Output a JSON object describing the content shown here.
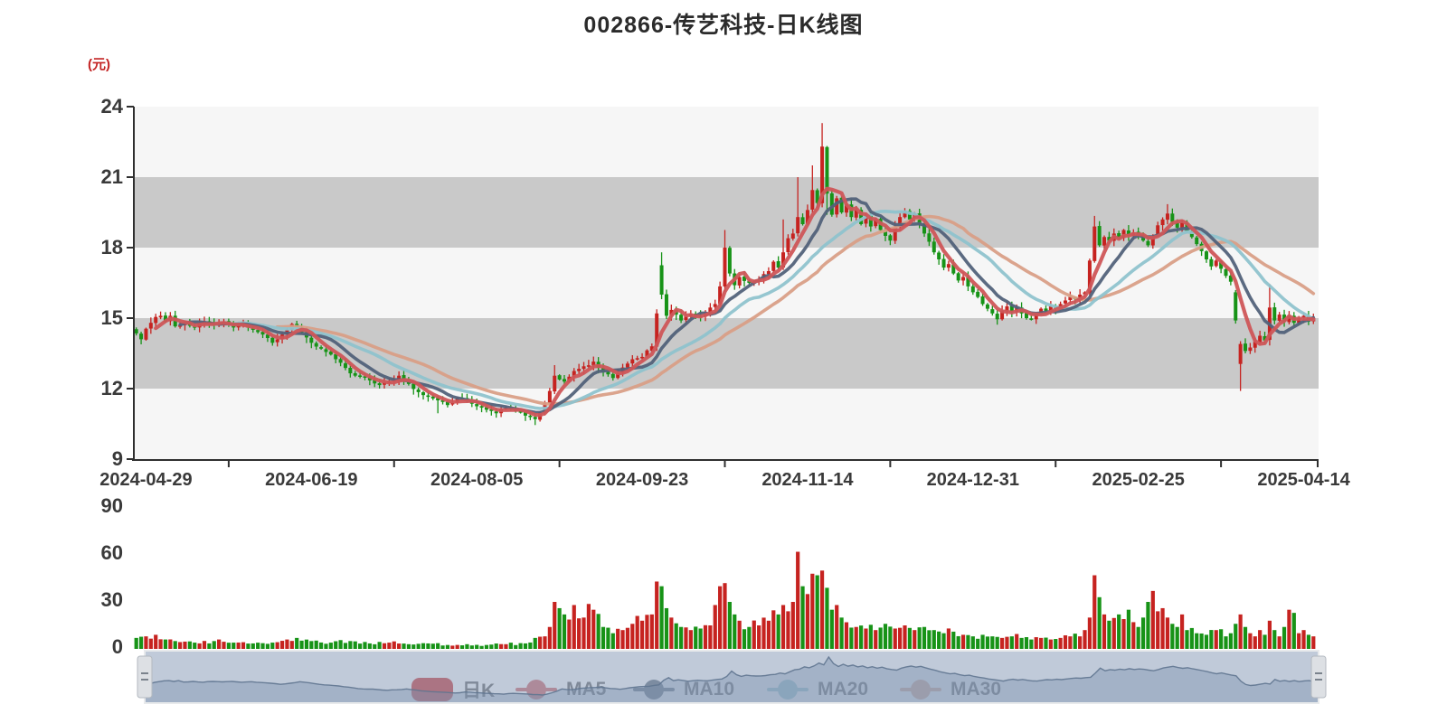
{
  "title": "002866-传艺科技-日K线图",
  "price_axis": {
    "unit_label": "(元)",
    "tick_labels": [
      "24",
      "21",
      "18",
      "15",
      "12",
      "9"
    ],
    "min": 9,
    "max": 24
  },
  "volume_axis": {
    "tick_labels": [
      "90",
      "60",
      "30",
      "0"
    ],
    "min": 0,
    "max": 90
  },
  "date_axis": {
    "labels": [
      "2024-04-29",
      "2024-06-19",
      "2024-08-05",
      "2024-09-23",
      "2024-11-14",
      "2024-12-31",
      "2025-02-25",
      "2025-04-14"
    ]
  },
  "legend": [
    {
      "label": "日K",
      "type": "candle",
      "color": "#c81d1d"
    },
    {
      "label": "MA5",
      "type": "line",
      "color": "#cd5759"
    },
    {
      "label": "MA10",
      "type": "line",
      "color": "#4e5e6d"
    },
    {
      "label": "MA20",
      "type": "line",
      "color": "#8fc3cd"
    },
    {
      "label": "MA30",
      "type": "line",
      "color": "#d99f87"
    }
  ],
  "colors": {
    "up": "#c62320",
    "down": "#179317",
    "band_light": "#f6f6f6",
    "band_gray": "#c9c9c9",
    "axis": "#2f2f2f",
    "title": "#2b2b2b",
    "unit": "#c32222",
    "ma5": "#cf5659",
    "ma10": "#52627a",
    "ma20": "#8fc3cd",
    "ma30": "#d99f87",
    "nav_base": "rgba(154,170,194,0.62)",
    "nav_area": "rgba(125,146,174,0.42)",
    "nav_line": "rgba(96,117,144,0.9)",
    "nav_handle": "#dde0e4"
  },
  "chart_data": {
    "type": "candlestick",
    "title": "002866-传艺科技-日K线图",
    "ylabel": "(元)",
    "price_range": [
      9,
      24
    ],
    "volume_range": [
      0,
      90
    ],
    "candle_count": 243,
    "x_tick_labels": [
      "2024-04-29",
      "2024-06-19",
      "2024-08-05",
      "2024-09-23",
      "2024-11-14",
      "2024-12-31",
      "2025-02-25",
      "2025-04-14"
    ],
    "x_tick_indices": [
      2,
      36,
      70,
      104,
      138,
      172,
      206,
      240
    ],
    "up_color_meaning": "red = close >= open",
    "down_color_meaning": "green = close < open",
    "price_keyframes": [
      [
        0,
        14.35
      ],
      [
        1,
        14.1
      ],
      [
        2,
        14.55
      ],
      [
        3,
        14.8
      ],
      [
        4,
        15.05
      ],
      [
        5,
        15.1
      ],
      [
        6,
        14.85
      ],
      [
        7,
        15.1
      ],
      [
        8,
        14.65
      ],
      [
        10,
        14.85
      ],
      [
        12,
        14.6
      ],
      [
        14,
        14.85
      ],
      [
        16,
        14.7
      ],
      [
        18,
        14.85
      ],
      [
        20,
        14.6
      ],
      [
        22,
        14.75
      ],
      [
        24,
        14.5
      ],
      [
        26,
        14.3
      ],
      [
        28,
        13.95
      ],
      [
        30,
        14.3
      ],
      [
        32,
        14.75
      ],
      [
        34,
        14.4
      ],
      [
        36,
        13.95
      ],
      [
        38,
        13.7
      ],
      [
        40,
        13.45
      ],
      [
        42,
        13.1
      ],
      [
        44,
        12.65
      ],
      [
        46,
        12.5
      ],
      [
        48,
        12.35
      ],
      [
        50,
        12.15
      ],
      [
        52,
        12.3
      ],
      [
        54,
        12.55
      ],
      [
        56,
        12.2
      ],
      [
        58,
        11.85
      ],
      [
        60,
        11.65
      ],
      [
        62,
        11.5
      ],
      [
        64,
        11.3
      ],
      [
        66,
        11.6
      ],
      [
        68,
        11.45
      ],
      [
        70,
        11.25
      ],
      [
        72,
        11.1
      ],
      [
        74,
        10.95
      ],
      [
        76,
        11.2
      ],
      [
        78,
        11.05
      ],
      [
        80,
        10.85
      ],
      [
        82,
        10.7
      ],
      [
        84,
        11.4
      ],
      [
        85,
        11.9
      ],
      [
        86,
        12.55
      ],
      [
        88,
        12.3
      ],
      [
        90,
        12.75
      ],
      [
        92,
        12.95
      ],
      [
        94,
        13.15
      ],
      [
        96,
        12.7
      ],
      [
        98,
        12.45
      ],
      [
        100,
        12.9
      ],
      [
        102,
        13.25
      ],
      [
        104,
        13.35
      ],
      [
        106,
        13.8
      ],
      [
        107,
        15.2
      ],
      [
        108,
        16.0
      ],
      [
        109,
        15.1
      ],
      [
        110,
        15.35
      ],
      [
        112,
        14.9
      ],
      [
        114,
        15.2
      ],
      [
        116,
        15.05
      ],
      [
        118,
        15.45
      ],
      [
        119,
        15.6
      ],
      [
        120,
        16.35
      ],
      [
        121,
        18.0
      ],
      [
        122,
        16.9
      ],
      [
        123,
        16.4
      ],
      [
        124,
        16.75
      ],
      [
        126,
        16.5
      ],
      [
        128,
        16.65
      ],
      [
        130,
        17.0
      ],
      [
        131,
        17.4
      ],
      [
        132,
        17.15
      ],
      [
        133,
        17.8
      ],
      [
        134,
        18.4
      ],
      [
        135,
        18.6
      ],
      [
        136,
        19.3
      ],
      [
        137,
        19.0
      ],
      [
        138,
        19.6
      ],
      [
        139,
        20.45
      ],
      [
        140,
        19.9
      ],
      [
        141,
        22.3
      ],
      [
        142,
        20.3
      ],
      [
        143,
        19.4
      ],
      [
        144,
        20.1
      ],
      [
        145,
        19.5
      ],
      [
        146,
        19.85
      ],
      [
        147,
        19.3
      ],
      [
        148,
        19.6
      ],
      [
        149,
        19.0
      ],
      [
        150,
        19.35
      ],
      [
        151,
        18.9
      ],
      [
        152,
        19.2
      ],
      [
        153,
        18.75
      ],
      [
        154,
        18.5
      ],
      [
        155,
        18.3
      ],
      [
        156,
        18.9
      ],
      [
        157,
        19.3
      ],
      [
        158,
        19.55
      ],
      [
        159,
        19.2
      ],
      [
        160,
        19.45
      ],
      [
        161,
        19.0
      ],
      [
        162,
        18.6
      ],
      [
        163,
        18.25
      ],
      [
        164,
        17.8
      ],
      [
        165,
        17.5
      ],
      [
        166,
        17.15
      ],
      [
        167,
        17.3
      ],
      [
        168,
        16.9
      ],
      [
        169,
        16.6
      ],
      [
        170,
        16.75
      ],
      [
        171,
        16.35
      ],
      [
        172,
        16.1
      ],
      [
        173,
        15.9
      ],
      [
        174,
        15.6
      ],
      [
        175,
        15.4
      ],
      [
        176,
        15.2
      ],
      [
        177,
        14.95
      ],
      [
        178,
        15.3
      ],
      [
        179,
        15.5
      ],
      [
        180,
        15.25
      ],
      [
        181,
        15.45
      ],
      [
        182,
        15.2
      ],
      [
        183,
        15.0
      ],
      [
        184,
        14.95
      ],
      [
        185,
        15.2
      ],
      [
        186,
        15.4
      ],
      [
        187,
        15.3
      ],
      [
        188,
        15.5
      ],
      [
        189,
        15.4
      ],
      [
        190,
        15.6
      ],
      [
        191,
        15.75
      ],
      [
        192,
        15.9
      ],
      [
        193,
        15.8
      ],
      [
        194,
        16.0
      ],
      [
        195,
        16.1
      ],
      [
        196,
        17.45
      ],
      [
        197,
        18.9
      ],
      [
        198,
        18.1
      ],
      [
        199,
        18.45
      ],
      [
        200,
        18.3
      ],
      [
        201,
        18.6
      ],
      [
        202,
        18.4
      ],
      [
        203,
        18.75
      ],
      [
        204,
        18.5
      ],
      [
        205,
        18.65
      ],
      [
        206,
        18.55
      ],
      [
        207,
        18.3
      ],
      [
        208,
        18.1
      ],
      [
        209,
        18.5
      ],
      [
        210,
        18.95
      ],
      [
        211,
        19.2
      ],
      [
        212,
        19.45
      ],
      [
        213,
        19.1
      ],
      [
        214,
        18.85
      ],
      [
        215,
        19.05
      ],
      [
        216,
        18.7
      ],
      [
        217,
        18.45
      ],
      [
        218,
        18.15
      ],
      [
        219,
        17.85
      ],
      [
        220,
        17.5
      ],
      [
        221,
        17.2
      ],
      [
        222,
        17.45
      ],
      [
        223,
        17.1
      ],
      [
        224,
        16.8
      ],
      [
        225,
        16.55
      ],
      [
        226,
        14.9
      ],
      [
        227,
        13.9
      ],
      [
        228,
        13.6
      ],
      [
        229,
        13.75
      ],
      [
        230,
        14.0
      ],
      [
        231,
        14.25
      ],
      [
        232,
        14.05
      ],
      [
        233,
        15.45
      ],
      [
        234,
        14.9
      ],
      [
        235,
        15.15
      ],
      [
        236,
        14.85
      ],
      [
        237,
        15.1
      ],
      [
        238,
        14.8
      ],
      [
        239,
        15.0
      ],
      [
        240,
        15.1
      ],
      [
        241,
        14.85
      ],
      [
        242,
        15.0
      ]
    ],
    "open_overrides": [
      [
        108,
        17.25
      ],
      [
        226,
        16.1
      ],
      [
        227,
        13.05
      ]
    ],
    "wick_overrides": [
      {
        "i": 62,
        "low": 10.95
      },
      {
        "i": 82,
        "low": 10.45
      },
      {
        "i": 86,
        "high": 13.0
      },
      {
        "i": 107,
        "high": 15.3
      },
      {
        "i": 108,
        "high": 17.8
      },
      {
        "i": 121,
        "high": 18.75
      },
      {
        "i": 133,
        "high": 19.2
      },
      {
        "i": 136,
        "high": 21.0
      },
      {
        "i": 139,
        "high": 21.5
      },
      {
        "i": 141,
        "high": 23.3
      },
      {
        "i": 142,
        "low": 19.4
      },
      {
        "i": 197,
        "high": 19.35
      },
      {
        "i": 212,
        "high": 19.85
      },
      {
        "i": 227,
        "low": 11.9
      },
      {
        "i": 233,
        "high": 16.45
      }
    ],
    "volume_keyframes": [
      [
        0,
        7
      ],
      [
        2,
        8
      ],
      [
        4,
        9
      ],
      [
        6,
        6
      ],
      [
        8,
        5
      ],
      [
        12,
        4
      ],
      [
        16,
        5
      ],
      [
        20,
        4
      ],
      [
        24,
        3.5
      ],
      [
        28,
        4
      ],
      [
        31,
        6
      ],
      [
        33,
        7
      ],
      [
        36,
        5
      ],
      [
        40,
        4
      ],
      [
        44,
        5
      ],
      [
        48,
        3.5
      ],
      [
        52,
        4
      ],
      [
        56,
        3
      ],
      [
        60,
        3.5
      ],
      [
        64,
        2.5
      ],
      [
        68,
        3
      ],
      [
        72,
        2.5
      ],
      [
        76,
        3
      ],
      [
        80,
        3.5
      ],
      [
        84,
        8
      ],
      [
        85,
        14
      ],
      [
        86,
        30
      ],
      [
        87,
        26
      ],
      [
        88,
        22
      ],
      [
        90,
        28
      ],
      [
        92,
        20
      ],
      [
        94,
        25
      ],
      [
        96,
        14
      ],
      [
        98,
        10
      ],
      [
        100,
        12
      ],
      [
        102,
        16
      ],
      [
        104,
        18
      ],
      [
        106,
        22
      ],
      [
        107,
        43
      ],
      [
        108,
        40
      ],
      [
        109,
        26
      ],
      [
        110,
        20
      ],
      [
        112,
        14
      ],
      [
        114,
        12
      ],
      [
        116,
        13
      ],
      [
        118,
        15
      ],
      [
        119,
        28
      ],
      [
        120,
        40
      ],
      [
        121,
        42
      ],
      [
        122,
        30
      ],
      [
        123,
        22
      ],
      [
        124,
        18
      ],
      [
        126,
        14
      ],
      [
        128,
        15
      ],
      [
        130,
        18
      ],
      [
        132,
        22
      ],
      [
        133,
        28
      ],
      [
        134,
        24
      ],
      [
        135,
        30
      ],
      [
        136,
        62
      ],
      [
        137,
        40
      ],
      [
        138,
        35
      ],
      [
        139,
        48
      ],
      [
        140,
        47
      ],
      [
        141,
        50
      ],
      [
        142,
        39
      ],
      [
        143,
        25
      ],
      [
        144,
        28
      ],
      [
        145,
        20
      ],
      [
        146,
        17
      ],
      [
        148,
        14
      ],
      [
        150,
        13
      ],
      [
        152,
        12
      ],
      [
        154,
        16
      ],
      [
        156,
        13
      ],
      [
        158,
        15
      ],
      [
        160,
        12
      ],
      [
        162,
        14
      ],
      [
        164,
        12
      ],
      [
        166,
        10
      ],
      [
        168,
        11
      ],
      [
        170,
        9
      ],
      [
        172,
        8
      ],
      [
        174,
        9
      ],
      [
        176,
        8
      ],
      [
        178,
        7
      ],
      [
        180,
        8
      ],
      [
        182,
        7
      ],
      [
        184,
        6
      ],
      [
        186,
        7
      ],
      [
        188,
        6
      ],
      [
        190,
        7
      ],
      [
        192,
        8
      ],
      [
        194,
        8
      ],
      [
        195,
        12
      ],
      [
        196,
        20
      ],
      [
        197,
        47
      ],
      [
        198,
        33
      ],
      [
        199,
        22
      ],
      [
        200,
        18
      ],
      [
        202,
        22
      ],
      [
        204,
        25
      ],
      [
        206,
        14
      ],
      [
        207,
        20
      ],
      [
        208,
        30
      ],
      [
        209,
        37
      ],
      [
        210,
        24
      ],
      [
        211,
        26
      ],
      [
        212,
        20
      ],
      [
        213,
        16
      ],
      [
        214,
        14
      ],
      [
        215,
        22
      ],
      [
        216,
        12
      ],
      [
        218,
        10
      ],
      [
        220,
        9
      ],
      [
        222,
        12
      ],
      [
        224,
        8
      ],
      [
        225,
        10
      ],
      [
        226,
        16
      ],
      [
        227,
        22
      ],
      [
        228,
        14
      ],
      [
        229,
        10
      ],
      [
        230,
        8
      ],
      [
        231,
        12
      ],
      [
        232,
        9
      ],
      [
        233,
        18
      ],
      [
        234,
        12
      ],
      [
        235,
        8
      ],
      [
        236,
        14
      ],
      [
        237,
        25
      ],
      [
        238,
        23
      ],
      [
        239,
        10
      ],
      [
        240,
        12
      ],
      [
        241,
        9
      ],
      [
        242,
        8
      ]
    ],
    "ma_series": [
      {
        "name": "MA5",
        "window": 5
      },
      {
        "name": "MA10",
        "window": 10
      },
      {
        "name": "MA20",
        "window": 20
      },
      {
        "name": "MA30",
        "window": 30
      }
    ]
  }
}
